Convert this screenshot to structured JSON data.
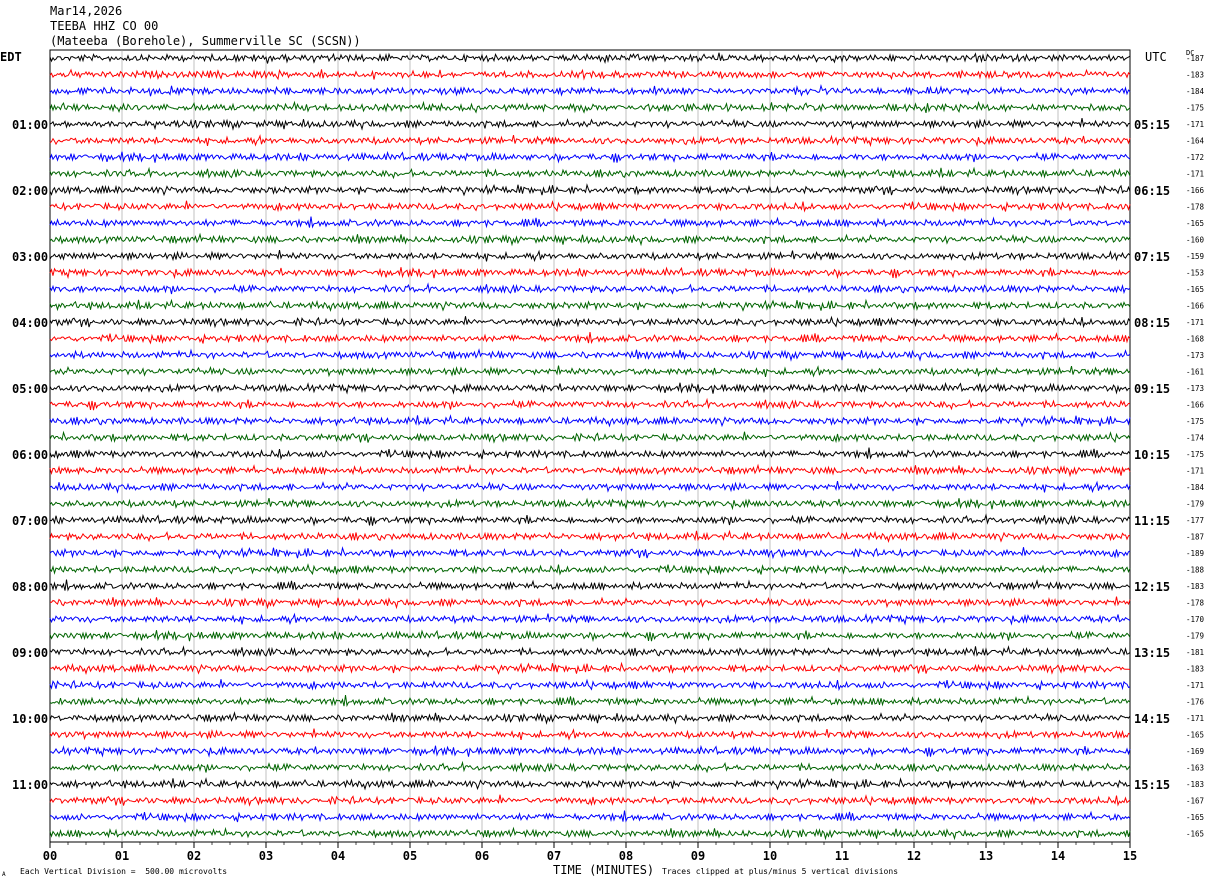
{
  "header": {
    "date": "Mar14,2026",
    "channel": "TEEBA HHZ CO 00",
    "station": "(Mateeba (Borehole), Summerville SC (SCSN))"
  },
  "left_timezone": "EDT",
  "right_timezone": "UTC",
  "dc_label": "DC",
  "chart_data": {
    "type": "line",
    "title": "",
    "xlabel": "TIME (MINUTES)",
    "x_ticks": [
      "00",
      "01",
      "02",
      "03",
      "04",
      "05",
      "06",
      "07",
      "08",
      "09",
      "10",
      "11",
      "12",
      "13",
      "14",
      "15"
    ],
    "xlim": [
      0,
      15
    ],
    "trace_colors": [
      "#000000",
      "#ff0000",
      "#0000ff",
      "#006400"
    ],
    "left_hour_labels": [
      "01:00",
      "02:00",
      "03:00",
      "04:00",
      "05:00",
      "06:00",
      "07:00",
      "08:00",
      "09:00",
      "10:00",
      "11:00"
    ],
    "right_hour_labels": [
      "05:15",
      "06:15",
      "07:15",
      "08:15",
      "09:15",
      "10:15",
      "11:15",
      "12:15",
      "13:15",
      "14:15",
      "15:15"
    ],
    "dc_offsets": [
      "-187",
      "-183",
      "-184",
      "-175",
      "-171",
      "-164",
      "-172",
      "-171",
      "-166",
      "-178",
      "-165",
      "-160",
      "-159",
      "-153",
      "-165",
      "-166",
      "-171",
      "-168",
      "-173",
      "-161",
      "-173",
      "-166",
      "-175",
      "-174",
      "-175",
      "-171",
      "-184",
      "-179",
      "-177",
      "-187",
      "-189",
      "-188",
      "-183",
      "-178",
      "-170",
      "-179",
      "-181",
      "-183",
      "-171",
      "-176",
      "-171",
      "-165",
      "-169",
      "-163",
      "-183",
      "-167",
      "-165",
      "-165"
    ]
  },
  "footer": {
    "scale_note": "Each Vertical Division =  500.00 microvolts",
    "clip_note": "Traces clipped at plus/minus 5 vertical divisions",
    "mark": "A"
  }
}
